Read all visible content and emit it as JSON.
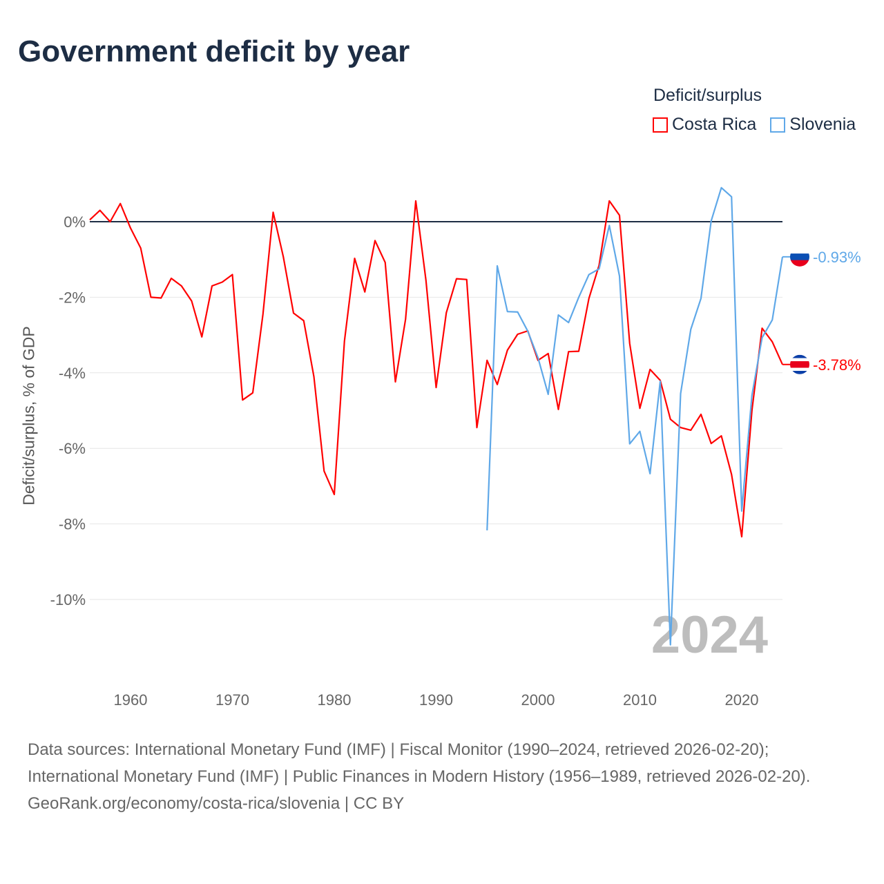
{
  "title": "Government deficit by year",
  "legend": {
    "title": "Deficit/surplus",
    "items": [
      {
        "label": "Costa Rica",
        "color": "#ff0000"
      },
      {
        "label": "Slovenia",
        "color": "#5fa8e8"
      }
    ]
  },
  "footer": {
    "sources": "Data sources: International Monetary Fund (IMF) | Fiscal Monitor (1990–2024, retrieved 2026-02-20); International Monetary Fund (IMF) | Public Finances in Modern History (1956–1989, retrieved 2026-02-20).",
    "credit": "GeoRank.org/economy/costa-rica/slovenia | CC BY"
  },
  "chart_data": {
    "type": "line",
    "title": "Government deficit by year",
    "xlabel": "",
    "ylabel": "Deficit/surplus, % of GDP",
    "xlim": [
      1956,
      2024
    ],
    "ylim": [
      -11.5,
      1.2
    ],
    "x_ticks": [
      1960,
      1970,
      1980,
      1990,
      2000,
      2010,
      2020
    ],
    "y_ticks": [
      0,
      -2,
      -4,
      -6,
      -8,
      -10
    ],
    "y_tick_labels": [
      "0%",
      "-2%",
      "-4%",
      "-6%",
      "-8%",
      "-10%"
    ],
    "watermark_year": "2024",
    "legend_position": "top-right",
    "series": [
      {
        "name": "Costa Rica",
        "color": "#ff0000",
        "start_year": 1956,
        "end_label": "-3.78%",
        "values": [
          0.05,
          0.3,
          0,
          0.48,
          -0.17,
          -0.7,
          -2.0,
          -2.02,
          -1.5,
          -1.7,
          -2.1,
          -3.05,
          -1.7,
          -1.6,
          -1.4,
          -4.72,
          -4.53,
          -2.45,
          0.25,
          -0.93,
          -2.42,
          -2.62,
          -4.1,
          -6.6,
          -7.22,
          -3.16,
          -0.97,
          -1.86,
          -0.5,
          -1.08,
          -4.24,
          -2.58,
          0.55,
          -1.55,
          -4.39,
          -2.41,
          -1.51,
          -1.53,
          -5.45,
          -3.67,
          -4.31,
          -3.4,
          -2.98,
          -2.89,
          -3.67,
          -3.49,
          -4.97,
          -3.44,
          -3.43,
          -2.03,
          -1.15,
          0.55,
          0.17,
          -3.22,
          -4.94,
          -3.91,
          -4.2,
          -5.23,
          -5.45,
          -5.52,
          -5.1,
          -5.87,
          -5.67,
          -6.69,
          -8.34,
          -5.0,
          -2.82,
          -3.18,
          -3.78
        ]
      },
      {
        "name": "Slovenia",
        "color": "#5fa8e8",
        "start_year": 1995,
        "end_label": "-0.93%",
        "values": [
          -8.17,
          -1.17,
          -2.38,
          -2.39,
          -2.9,
          -3.6,
          -4.57,
          -2.47,
          -2.67,
          -2.0,
          -1.4,
          -1.25,
          -0.1,
          -1.44,
          -5.88,
          -5.55,
          -6.67,
          -4.22,
          -11.2,
          -4.55,
          -2.85,
          -2.03,
          0.02,
          0.9,
          0.66,
          -7.66,
          -4.6,
          -3.07,
          -2.6,
          -0.93
        ]
      }
    ]
  }
}
